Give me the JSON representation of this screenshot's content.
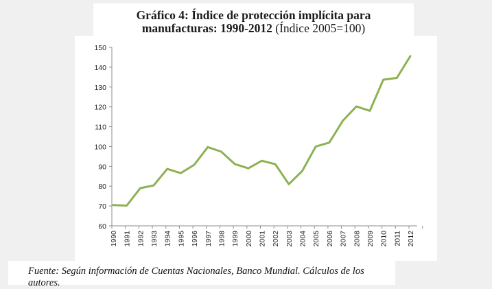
{
  "title": {
    "line1_bold": "Gráfico 4: Índice de protección implícita para",
    "line2_bold": "manufacturas: 1990-2012",
    "line2_normal": " (Índice 2005=100)"
  },
  "footer": {
    "source": "Fuente: Según información de Cuentas Nacionales, Banco Mundial. Cálculos de los autores."
  },
  "chart_data": {
    "type": "line",
    "title": "Gráfico 4: Índice de protección implícita para manufacturas: 1990-2012 (Índice 2005=100)",
    "xlabel": "",
    "ylabel": "",
    "ylim": [
      60,
      150
    ],
    "yticks": [
      60,
      70,
      80,
      90,
      100,
      110,
      120,
      130,
      140,
      150
    ],
    "grid": false,
    "legend": "none",
    "x": [
      "1990",
      "1991",
      "1992",
      "1993",
      "1994",
      "1995",
      "1996",
      "1997",
      "1998",
      "1999",
      "2000",
      "2001",
      "2002",
      "2003",
      "2004",
      "2005",
      "2006",
      "2007",
      "2008",
      "2009",
      "2010",
      "2011",
      "2012"
    ],
    "series": [
      {
        "name": "Índice de protección implícita",
        "color": "#8db153",
        "values": [
          70.5,
          70.2,
          79.0,
          80.4,
          88.7,
          86.6,
          90.8,
          99.7,
          97.4,
          91.2,
          89.0,
          92.8,
          91.1,
          81.0,
          87.7,
          100.0,
          102.0,
          113.0,
          120.2,
          118.0,
          133.7,
          134.6,
          145.6
        ]
      }
    ]
  }
}
